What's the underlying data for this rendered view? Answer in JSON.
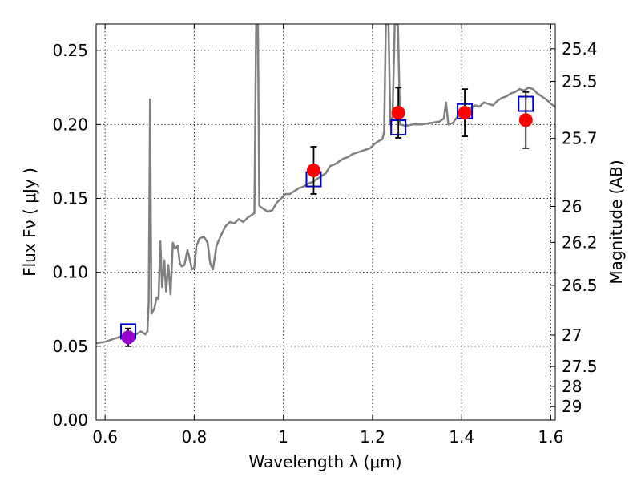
{
  "chart_data": {
    "type": "scatter",
    "xlabel": "Wavelength  λ (μm)",
    "ylabel": "Flux  Fν  ( μJy )",
    "y2label": "Magnitude (AB)",
    "xlim": [
      0.58,
      1.61
    ],
    "ylim": [
      0.0,
      0.268
    ],
    "grid": true,
    "x_ticks": [
      0.6,
      0.8,
      1.0,
      1.2,
      1.4,
      1.6
    ],
    "x_tick_labels": [
      "0.6",
      "0.8",
      "1",
      "1.2",
      "1.4",
      "1.6"
    ],
    "y_ticks": [
      0.0,
      0.05,
      0.1,
      0.15,
      0.2,
      0.25
    ],
    "y_tick_labels": [
      "0.00",
      "0.05",
      "0.10",
      "0.15",
      "0.20",
      "0.25"
    ],
    "magnitude_ticks": [
      {
        "label": "25.4",
        "flux": 0.2513
      },
      {
        "label": "25.5",
        "flux": 0.2292
      },
      {
        "label": "25.7",
        "flux": 0.1906
      },
      {
        "label": "26",
        "flux": 0.1446
      },
      {
        "label": "26.2",
        "flux": 0.1202
      },
      {
        "label": "26.5",
        "flux": 0.0912
      },
      {
        "label": "27",
        "flux": 0.0575
      },
      {
        "label": "27.5",
        "flux": 0.0363
      },
      {
        "label": "28",
        "flux": 0.0229
      },
      {
        "label": "29",
        "flux": 0.0091
      }
    ],
    "series": [
      {
        "kind": "line",
        "color": "#808080",
        "points": [
          [
            0.58,
            0.052
          ],
          [
            0.6,
            0.053
          ],
          [
            0.62,
            0.055
          ],
          [
            0.64,
            0.057
          ],
          [
            0.655,
            0.058
          ],
          [
            0.67,
            0.058
          ],
          [
            0.68,
            0.06
          ],
          [
            0.69,
            0.058
          ],
          [
            0.695,
            0.06
          ],
          [
            0.698,
            0.08
          ],
          [
            0.701,
            0.217
          ],
          [
            0.704,
            0.072
          ],
          [
            0.71,
            0.075
          ],
          [
            0.716,
            0.083
          ],
          [
            0.72,
            0.082
          ],
          [
            0.724,
            0.121
          ],
          [
            0.728,
            0.09
          ],
          [
            0.733,
            0.108
          ],
          [
            0.737,
            0.087
          ],
          [
            0.742,
            0.105
          ],
          [
            0.747,
            0.085
          ],
          [
            0.752,
            0.12
          ],
          [
            0.757,
            0.116
          ],
          [
            0.763,
            0.118
          ],
          [
            0.768,
            0.106
          ],
          [
            0.772,
            0.104
          ],
          [
            0.778,
            0.105
          ],
          [
            0.785,
            0.115
          ],
          [
            0.789,
            0.11
          ],
          [
            0.795,
            0.102
          ],
          [
            0.8,
            0.103
          ],
          [
            0.805,
            0.118
          ],
          [
            0.812,
            0.123
          ],
          [
            0.822,
            0.124
          ],
          [
            0.83,
            0.12
          ],
          [
            0.836,
            0.106
          ],
          [
            0.842,
            0.102
          ],
          [
            0.85,
            0.118
          ],
          [
            0.86,
            0.125
          ],
          [
            0.87,
            0.131
          ],
          [
            0.88,
            0.134
          ],
          [
            0.89,
            0.133
          ],
          [
            0.9,
            0.136
          ],
          [
            0.91,
            0.134
          ],
          [
            0.92,
            0.137
          ],
          [
            0.93,
            0.139
          ],
          [
            0.935,
            0.14
          ],
          [
            0.939,
            0.268
          ],
          [
            0.943,
            0.268
          ],
          [
            0.946,
            0.145
          ],
          [
            0.955,
            0.143
          ],
          [
            0.965,
            0.141
          ],
          [
            0.975,
            0.142
          ],
          [
            0.985,
            0.147
          ],
          [
            0.995,
            0.15
          ],
          [
            1.005,
            0.153
          ],
          [
            1.015,
            0.153
          ],
          [
            1.025,
            0.155
          ],
          [
            1.035,
            0.157
          ],
          [
            1.045,
            0.158
          ],
          [
            1.055,
            0.16
          ],
          [
            1.065,
            0.161
          ],
          [
            1.075,
            0.163
          ],
          [
            1.085,
            0.165
          ],
          [
            1.095,
            0.167
          ],
          [
            1.105,
            0.172
          ],
          [
            1.115,
            0.173
          ],
          [
            1.125,
            0.175
          ],
          [
            1.135,
            0.177
          ],
          [
            1.145,
            0.178
          ],
          [
            1.155,
            0.18
          ],
          [
            1.165,
            0.181
          ],
          [
            1.175,
            0.182
          ],
          [
            1.185,
            0.183
          ],
          [
            1.195,
            0.184
          ],
          [
            1.205,
            0.187
          ],
          [
            1.215,
            0.189
          ],
          [
            1.222,
            0.19
          ],
          [
            1.226,
            0.195
          ],
          [
            1.23,
            0.268
          ],
          [
            1.236,
            0.268
          ],
          [
            1.24,
            0.2
          ],
          [
            1.245,
            0.205
          ],
          [
            1.25,
            0.268
          ],
          [
            1.257,
            0.268
          ],
          [
            1.262,
            0.2
          ],
          [
            1.275,
            0.199
          ],
          [
            1.29,
            0.2
          ],
          [
            1.31,
            0.2
          ],
          [
            1.33,
            0.201
          ],
          [
            1.35,
            0.202
          ],
          [
            1.36,
            0.204
          ],
          [
            1.365,
            0.215
          ],
          [
            1.37,
            0.2
          ],
          [
            1.38,
            0.201
          ],
          [
            1.39,
            0.205
          ],
          [
            1.4,
            0.208
          ],
          [
            1.41,
            0.209
          ],
          [
            1.42,
            0.211
          ],
          [
            1.43,
            0.213
          ],
          [
            1.44,
            0.212
          ],
          [
            1.45,
            0.215
          ],
          [
            1.46,
            0.214
          ],
          [
            1.47,
            0.213
          ],
          [
            1.48,
            0.216
          ],
          [
            1.49,
            0.218
          ],
          [
            1.5,
            0.219
          ],
          [
            1.51,
            0.221
          ],
          [
            1.52,
            0.222
          ],
          [
            1.53,
            0.224
          ],
          [
            1.54,
            0.223
          ],
          [
            1.55,
            0.225
          ],
          [
            1.56,
            0.224
          ],
          [
            1.57,
            0.221
          ],
          [
            1.58,
            0.219
          ],
          [
            1.59,
            0.217
          ],
          [
            1.6,
            0.214
          ],
          [
            1.61,
            0.212
          ]
        ]
      },
      {
        "kind": "model-points",
        "marker": "square",
        "color": "#0000cc",
        "points": [
          [
            0.652,
            0.06
          ],
          [
            1.068,
            0.163
          ],
          [
            1.258,
            0.198
          ],
          [
            1.407,
            0.209
          ],
          [
            1.544,
            0.214
          ]
        ]
      },
      {
        "kind": "observed-points",
        "marker": "circle",
        "points": [
          {
            "x": 0.652,
            "y": 0.056,
            "yerr": 0.006,
            "color": "#9900cc"
          },
          {
            "x": 1.068,
            "y": 0.169,
            "yerr": 0.016,
            "color": "#ff0000"
          },
          {
            "x": 1.258,
            "y": 0.208,
            "yerr": 0.017,
            "color": "#ff0000"
          },
          {
            "x": 1.407,
            "y": 0.208,
            "yerr": 0.016,
            "color": "#ff0000"
          },
          {
            "x": 1.544,
            "y": 0.203,
            "yerr": 0.019,
            "color": "#ff0000"
          }
        ]
      }
    ]
  }
}
